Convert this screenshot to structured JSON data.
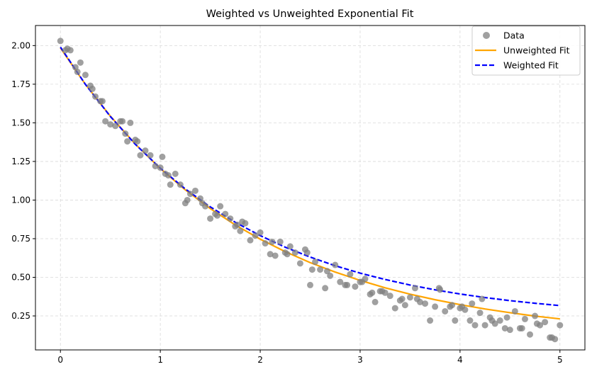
{
  "chart_data": {
    "type": "scatter",
    "title": "Weighted vs Unweighted Exponential Fit",
    "xlabel": "",
    "ylabel": "",
    "xlim": [
      -0.25,
      5.25
    ],
    "ylim": [
      0.03,
      2.13
    ],
    "xticks": [
      0,
      1,
      2,
      3,
      4,
      5
    ],
    "yticks": [
      0.25,
      0.5,
      0.75,
      1.0,
      1.25,
      1.5,
      1.75,
      2.0
    ],
    "ytick_labels": [
      "0.25",
      "0.50",
      "0.75",
      "1.00",
      "1.25",
      "1.50",
      "1.75",
      "2.00"
    ],
    "grid": true,
    "legend_position": "top-right",
    "colors": {
      "data": "#808080",
      "unweighted": "#ffa500",
      "weighted": "#0000ff",
      "grid": "#d9d9d9"
    },
    "series": [
      {
        "name": "Data",
        "kind": "scatter",
        "x": [
          0.0,
          0.05,
          0.1,
          0.15,
          0.2,
          0.25,
          0.3,
          0.35,
          0.4,
          0.45,
          0.5,
          0.55,
          0.6,
          0.65,
          0.7,
          0.75,
          0.8,
          0.85,
          0.9,
          0.95,
          1.0,
          1.05,
          1.1,
          1.15,
          1.2,
          1.25,
          1.3,
          1.35,
          1.4,
          1.45,
          1.5,
          1.55,
          1.6,
          1.65,
          1.7,
          1.75,
          1.8,
          1.85,
          1.9,
          1.95,
          2.0,
          2.05,
          2.1,
          2.15,
          2.2,
          2.25,
          2.3,
          2.35,
          2.4,
          2.45,
          2.5,
          2.55,
          2.6,
          2.65,
          2.7,
          2.75,
          2.8,
          2.85,
          2.9,
          2.95,
          3.0,
          3.05,
          3.1,
          3.15,
          3.2,
          3.25,
          3.3,
          3.35,
          3.4,
          3.45,
          3.5,
          3.55,
          3.6,
          3.65,
          3.7,
          3.75,
          3.8,
          3.85,
          3.9,
          3.95,
          4.0,
          4.05,
          4.1,
          4.15,
          4.2,
          4.25,
          4.3,
          4.35,
          4.4,
          4.45,
          4.5,
          4.55,
          4.6,
          4.65,
          4.7,
          4.75,
          4.8,
          4.85,
          4.9,
          4.95,
          5.0,
          0.07,
          0.17,
          0.32,
          0.42,
          0.62,
          0.67,
          0.77,
          1.02,
          1.08,
          1.27,
          1.42,
          1.57,
          1.77,
          1.82,
          2.12,
          2.27,
          2.47,
          2.52,
          2.67,
          2.87,
          3.02,
          3.12,
          3.22,
          3.42,
          3.57,
          3.79,
          3.92,
          4.02,
          4.12,
          4.22,
          4.32,
          4.47,
          4.62,
          4.77,
          4.92
        ],
        "y": [
          2.03,
          1.97,
          1.97,
          1.86,
          1.89,
          1.81,
          1.74,
          1.67,
          1.64,
          1.51,
          1.49,
          1.48,
          1.51,
          1.43,
          1.5,
          1.39,
          1.29,
          1.32,
          1.29,
          1.22,
          1.21,
          1.17,
          1.1,
          1.17,
          1.1,
          0.98,
          1.04,
          1.06,
          1.01,
          0.96,
          0.88,
          0.91,
          0.96,
          0.91,
          0.88,
          0.83,
          0.8,
          0.85,
          0.74,
          0.77,
          0.79,
          0.72,
          0.65,
          0.64,
          0.73,
          0.66,
          0.7,
          0.66,
          0.59,
          0.68,
          0.45,
          0.6,
          0.55,
          0.43,
          0.51,
          0.58,
          0.47,
          0.45,
          0.52,
          0.44,
          0.47,
          0.49,
          0.39,
          0.34,
          0.41,
          0.4,
          0.38,
          0.3,
          0.35,
          0.32,
          0.37,
          0.43,
          0.34,
          0.33,
          0.22,
          0.31,
          0.42,
          0.28,
          0.31,
          0.22,
          0.3,
          0.29,
          0.22,
          0.19,
          0.27,
          0.19,
          0.24,
          0.2,
          0.22,
          0.17,
          0.16,
          0.28,
          0.17,
          0.23,
          0.13,
          0.25,
          0.19,
          0.21,
          0.11,
          0.1,
          0.19,
          1.98,
          1.83,
          1.72,
          1.64,
          1.51,
          1.38,
          1.38,
          1.28,
          1.16,
          1.0,
          0.98,
          0.9,
          0.84,
          0.86,
          0.73,
          0.65,
          0.66,
          0.55,
          0.54,
          0.45,
          0.47,
          0.4,
          0.41,
          0.36,
          0.36,
          0.43,
          0.32,
          0.31,
          0.33,
          0.36,
          0.22,
          0.24,
          0.17,
          0.2,
          0.11
        ]
      },
      {
        "name": "Unweighted Fit",
        "kind": "line",
        "style": "solid",
        "x": [
          0,
          0.25,
          0.5,
          0.75,
          1.0,
          1.25,
          1.5,
          1.75,
          2.0,
          2.25,
          2.5,
          2.75,
          3.0,
          3.25,
          3.5,
          3.75,
          4.0,
          4.25,
          4.5,
          4.75,
          5.0
        ],
        "y": [
          1.985,
          1.749,
          1.543,
          1.362,
          1.204,
          1.066,
          0.945,
          0.839,
          0.747,
          0.666,
          0.595,
          0.534,
          0.48,
          0.432,
          0.391,
          0.355,
          0.323,
          0.295,
          0.271,
          0.249,
          0.231
        ]
      },
      {
        "name": "Weighted Fit",
        "kind": "line",
        "style": "dashed",
        "x": [
          0,
          0.25,
          0.5,
          0.75,
          1.0,
          1.25,
          1.5,
          1.75,
          2.0,
          2.25,
          2.5,
          2.75,
          3.0,
          3.25,
          3.5,
          3.75,
          4.0,
          4.25,
          4.5,
          4.75,
          5.0
        ],
        "y": [
          1.99,
          1.749,
          1.541,
          1.361,
          1.206,
          1.072,
          0.956,
          0.856,
          0.77,
          0.695,
          0.631,
          0.575,
          0.527,
          0.486,
          0.45,
          0.419,
          0.392,
          0.369,
          0.349,
          0.332,
          0.317
        ]
      }
    ]
  }
}
